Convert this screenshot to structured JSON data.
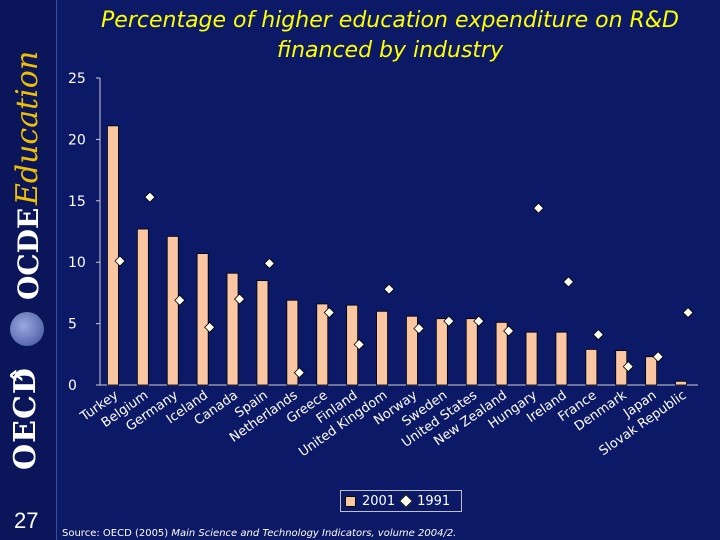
{
  "sidebar": {
    "oecd": "OECD",
    "ocde": "OCDE",
    "education": "Education"
  },
  "page_number": "27",
  "source": {
    "prefix": "Source: OECD (2005) ",
    "title": "Main Science and Technology Indicators, volume 2004/2."
  },
  "colors": {
    "bar": "#fbc7a3",
    "plot_bg": "#0b1966",
    "title": "#ffff00",
    "marker": "#fffff0"
  },
  "chart_data": {
    "type": "bar",
    "title": "Percentage of higher education expenditure on R&D financed by industry",
    "ylim": [
      0,
      25
    ],
    "yticks": [
      0,
      5,
      10,
      15,
      20,
      25
    ],
    "grid": false,
    "legend_position": "bottom-center",
    "categories": [
      "Turkey",
      "Belgium",
      "Germany",
      "Iceland",
      "Canada",
      "Spain",
      "Netherlands",
      "Greece",
      "Finland",
      "United Kingdom",
      "Norway",
      "Sweden",
      "United States",
      "New Zealand",
      "Hungary",
      "Ireland",
      "France",
      "Denmark",
      "Japan",
      "Slovak Republic"
    ],
    "series": [
      {
        "name": "2001",
        "kind": "bar",
        "values": [
          21.1,
          12.7,
          12.1,
          10.7,
          9.1,
          8.5,
          6.9,
          6.6,
          6.5,
          6.0,
          5.6,
          5.4,
          5.4,
          5.1,
          4.3,
          4.3,
          2.9,
          2.8,
          2.3,
          0.3
        ]
      },
      {
        "name": "1991",
        "kind": "marker",
        "values": [
          10.1,
          15.3,
          6.9,
          4.7,
          7.0,
          9.9,
          1.0,
          5.9,
          3.3,
          7.8,
          4.6,
          5.2,
          5.2,
          4.4,
          14.4,
          8.4,
          4.1,
          1.5,
          2.3,
          5.9
        ]
      }
    ]
  }
}
